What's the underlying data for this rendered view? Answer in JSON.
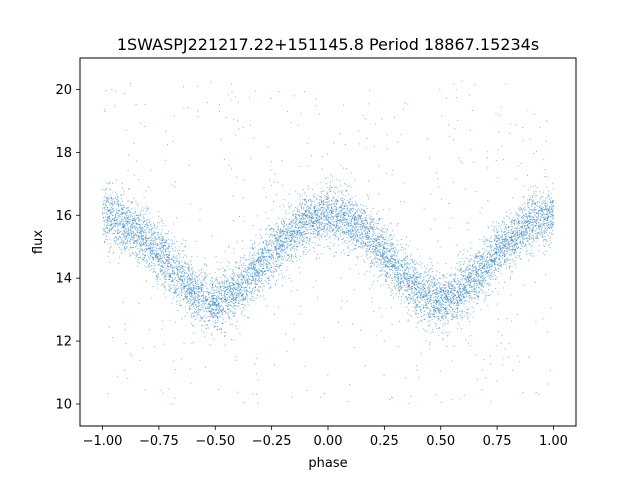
{
  "chart_data": {
    "type": "scatter",
    "title": "1SWASPJ221217.22+151145.8 Period 18867.15234s",
    "xlabel": "phase",
    "ylabel": "flux",
    "xlim": [
      -1.1,
      1.1
    ],
    "ylim": [
      9.3,
      21.0
    ],
    "x_ticks": [
      -1.0,
      -0.75,
      -0.5,
      -0.25,
      0.0,
      0.25,
      0.5,
      0.75,
      1.0
    ],
    "x_tick_labels": [
      "−1.00",
      "−0.75",
      "−0.50",
      "−0.25",
      "0.00",
      "0.25",
      "0.50",
      "0.75",
      "1.00"
    ],
    "y_ticks": [
      10,
      12,
      14,
      16,
      18,
      20
    ],
    "y_tick_labels": [
      "10",
      "12",
      "14",
      "16",
      "18",
      "20"
    ],
    "grid": false,
    "legend": "none",
    "series": [
      {
        "color": "#1f77b4",
        "x_range": [
          -1.0,
          1.0
        ],
        "light_curve": {
          "phase": [
            -1.0,
            -0.9,
            -0.8,
            -0.7,
            -0.6,
            -0.5,
            -0.4,
            -0.3,
            -0.2,
            -0.1,
            0.0,
            0.1,
            0.2,
            0.3,
            0.4,
            0.5,
            0.6,
            0.7,
            0.8,
            0.9,
            1.0
          ],
          "flux": [
            16.0,
            15.8,
            15.2,
            14.4,
            13.6,
            13.2,
            13.6,
            14.4,
            15.2,
            15.8,
            16.0,
            15.8,
            15.2,
            14.4,
            13.6,
            13.2,
            13.6,
            14.4,
            15.2,
            15.8,
            16.0
          ]
        },
        "scatter_sigma": 0.45,
        "flux_outlier_range": [
          10.0,
          20.3
        ]
      }
    ]
  }
}
